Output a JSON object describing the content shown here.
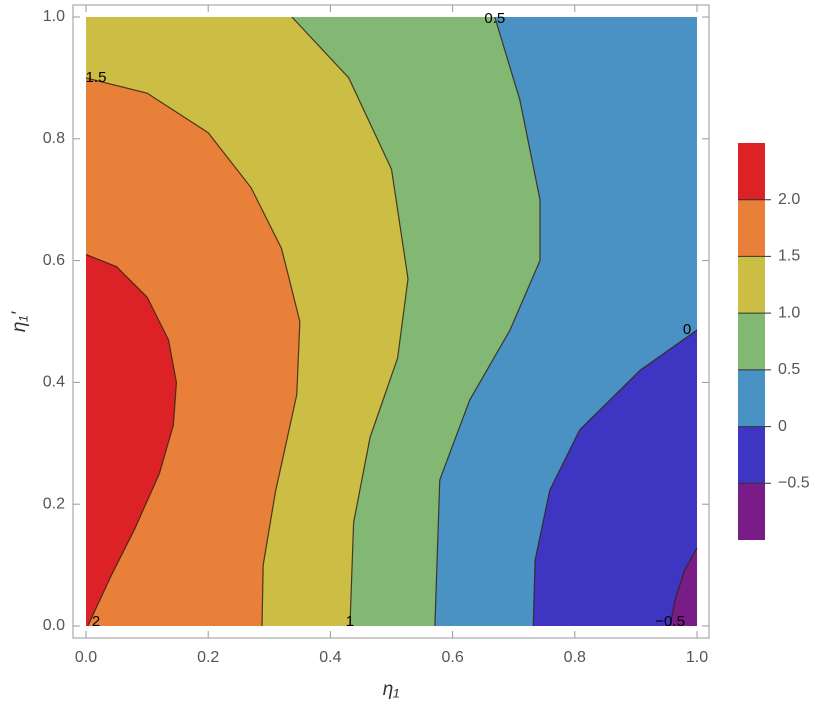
{
  "chart_data": {
    "type": "contour",
    "xlabel": "η₁",
    "ylabel": "η₁'",
    "xlim": [
      0,
      1
    ],
    "ylim": [
      0,
      1
    ],
    "xticks": [
      {
        "value": 0,
        "label": "0.0"
      },
      0.2,
      0.4,
      0.6,
      0.8,
      {
        "value": 1,
        "label": "1.0"
      }
    ],
    "yticks": [
      {
        "value": 0,
        "label": "0.0"
      },
      0.2,
      0.4,
      0.6,
      0.8,
      {
        "value": 1,
        "label": "1.0"
      }
    ],
    "contours": [
      {
        "level": -0.5,
        "label": "−0.5",
        "label_pos": "end",
        "color": "#3f35c3",
        "x": [
          1,
          0.98,
          0.964,
          0.956
        ],
        "y": [
          0.128,
          0.092,
          0.043,
          0
        ]
      },
      {
        "level": 0,
        "label_pos": "start",
        "color": "#4a92c4",
        "x": [
          1,
          0.907,
          0.808,
          0.759,
          0.735,
          0.732
        ],
        "y": [
          0.486,
          0.42,
          0.322,
          0.223,
          0.108,
          0
        ]
      },
      {
        "level": 0.5,
        "label_pos": "start",
        "color": "#82b874",
        "x": [
          0.669,
          0.71,
          0.743,
          0.743,
          0.694,
          0.628,
          0.579,
          0.571
        ],
        "y": [
          1,
          0.864,
          0.7,
          0.6,
          0.486,
          0.371,
          0.24,
          0
        ]
      },
      {
        "level": 1,
        "label_pos": "end",
        "color": "#ccbd45",
        "x": [
          0.337,
          0.43,
          0.5,
          0.527,
          0.51,
          0.465,
          0.438,
          0.432
        ],
        "y": [
          1,
          0.9,
          0.75,
          0.57,
          0.44,
          0.31,
          0.17,
          0
        ]
      },
      {
        "level": 1.5,
        "label_pos": "start",
        "color": "#e8803a",
        "x": [
          0,
          0.1,
          0.2,
          0.27,
          0.32,
          0.35,
          0.345,
          0.31,
          0.29,
          0.288
        ],
        "y": [
          0.9,
          0.875,
          0.81,
          0.72,
          0.62,
          0.5,
          0.38,
          0.22,
          0.1,
          0
        ]
      },
      {
        "level": 2,
        "label_pos": "end",
        "color": "#dc2226",
        "x": [
          0,
          0.05,
          0.1,
          0.135,
          0.148,
          0.143,
          0.12,
          0.08,
          0.04,
          0.003
        ],
        "y": [
          0.61,
          0.59,
          0.54,
          0.47,
          0.4,
          0.33,
          0.25,
          0.16,
          0.08,
          0
        ]
      }
    ],
    "background_color": "#7a1c88",
    "colorbar": {
      "lim": [
        -1,
        2.5
      ],
      "ticks": [
        {
          "value": -0.5,
          "label": "−0.5"
        },
        0,
        0.5,
        {
          "value": 1,
          "label": "1.0"
        },
        1.5,
        {
          "value": 2,
          "label": "2.0"
        }
      ],
      "colors": [
        "#7a1c88",
        "#3f35c3",
        "#4a92c4",
        "#82b874",
        "#ccbd45",
        "#e8803a",
        "#dc2226"
      ]
    }
  }
}
